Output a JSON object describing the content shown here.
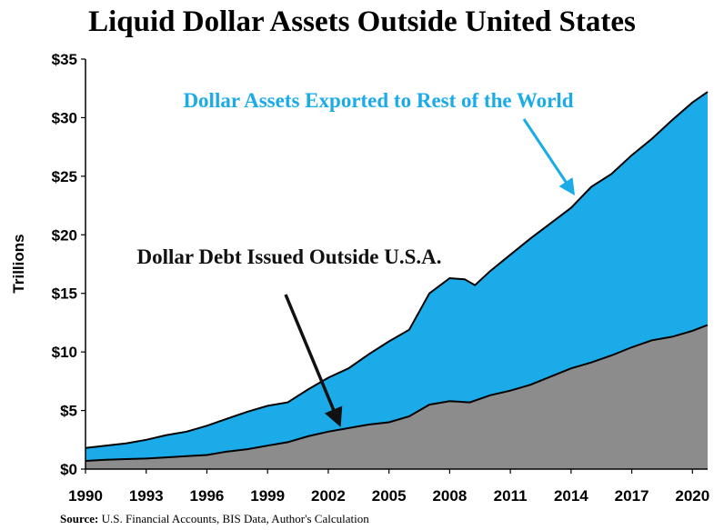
{
  "chart_data": {
    "type": "area",
    "title": "Liquid Dollar Assets Outside United States",
    "ylabel": "Trillions",
    "xlabel": "",
    "xlim": [
      1990,
      2020.75
    ],
    "ylim": [
      0,
      35
    ],
    "x_ticks": [
      "1990",
      "1993",
      "1996",
      "1999",
      "2002",
      "2005",
      "2008",
      "2011",
      "2014",
      "2017",
      "2020"
    ],
    "y_ticks": [
      "$0",
      "$5",
      "$10",
      "$15",
      "$20",
      "$25",
      "$30",
      "$35"
    ],
    "colors": {
      "total": "#1aabe8",
      "debt": "#8c8c8c",
      "outline": "#000000",
      "annotation_total": "#1aabe8",
      "annotation_debt": "#111111"
    },
    "series": [
      {
        "name": "Dollar Assets Exported to Rest of the World",
        "x": [
          1990,
          1991,
          1992,
          1993,
          1994,
          1995,
          1996,
          1997,
          1998,
          1999,
          2000,
          2001,
          2002,
          2003,
          2004,
          2005,
          2006,
          2007,
          2008,
          2008.75,
          2009.25,
          2010,
          2011,
          2012,
          2013,
          2014,
          2015,
          2016,
          2017,
          2018,
          2019,
          2020,
          2020.75
        ],
        "values": [
          1.8,
          2.0,
          2.2,
          2.5,
          2.9,
          3.2,
          3.7,
          4.3,
          4.9,
          5.4,
          5.7,
          6.8,
          7.8,
          8.6,
          9.8,
          10.9,
          11.9,
          15.0,
          16.3,
          16.2,
          15.7,
          16.9,
          18.3,
          19.7,
          21.0,
          22.3,
          24.1,
          25.2,
          26.8,
          28.2,
          29.8,
          31.3,
          32.2
        ]
      },
      {
        "name": "Dollar Debt Issued Outside U.S.A.",
        "x": [
          1990,
          1991,
          1992,
          1993,
          1994,
          1995,
          1996,
          1997,
          1998,
          1999,
          2000,
          2001,
          2002,
          2003,
          2004,
          2005,
          2006,
          2007,
          2008,
          2009,
          2010,
          2011,
          2012,
          2013,
          2014,
          2015,
          2016,
          2017,
          2018,
          2019,
          2020,
          2020.75
        ],
        "values": [
          0.7,
          0.8,
          0.85,
          0.9,
          1.0,
          1.1,
          1.2,
          1.5,
          1.7,
          2.0,
          2.3,
          2.8,
          3.2,
          3.5,
          3.8,
          4.0,
          4.5,
          5.5,
          5.8,
          5.7,
          6.3,
          6.7,
          7.2,
          7.9,
          8.6,
          9.1,
          9.7,
          10.4,
          11.0,
          11.3,
          11.8,
          12.3
        ]
      }
    ],
    "annotations": [
      {
        "text": "Dollar Assets Exported to Rest of the World",
        "color": "#1aabe8",
        "target": "total"
      },
      {
        "text": "Dollar Debt Issued Outside U.S.A.",
        "color": "#111111",
        "target": "debt"
      }
    ]
  },
  "source": {
    "label": "Source:",
    "text": "U.S. Financial Accounts, BIS Data, Author's Calculation"
  }
}
